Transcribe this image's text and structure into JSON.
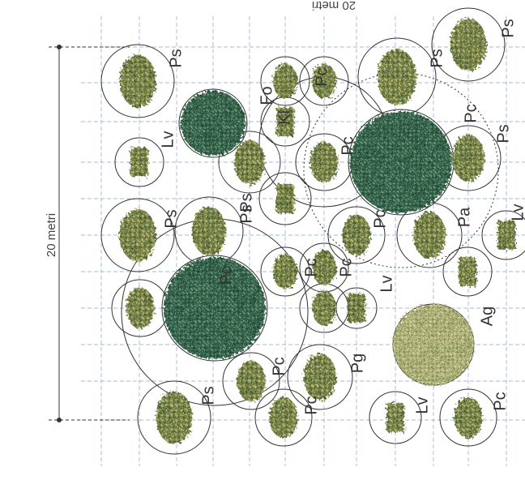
{
  "dimension_left": "20 metri",
  "dimension_top": "20 metri",
  "labels": [
    "Ps",
    "Lv",
    "Ps",
    "Fo",
    "Pc",
    "Kl",
    "Ps",
    "Ps",
    "Pc",
    "Ps",
    "Pc",
    "Ps",
    "Ps",
    "Pc",
    "Pc",
    "Lv",
    "Pc",
    "Pa",
    "Lv",
    "Ag",
    "Pc",
    "Pg",
    "Pc",
    "Ps",
    "Lv",
    "Pc",
    "Pc"
  ]
}
